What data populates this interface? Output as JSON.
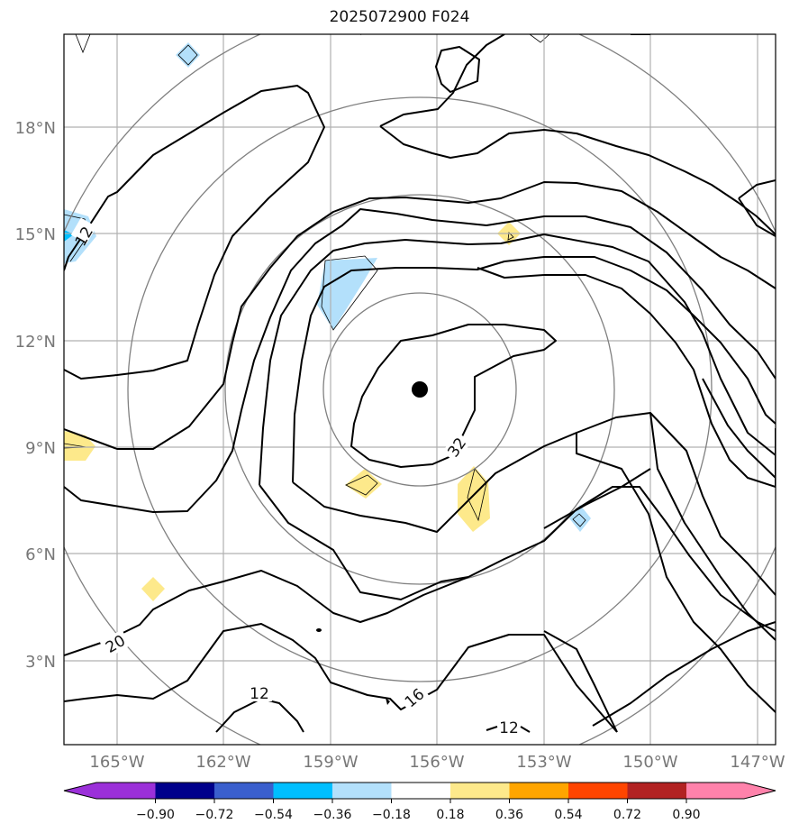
{
  "title": "2025072900 F024",
  "map": {
    "lat_ticks": [
      "18°N",
      "15°N",
      "12°N",
      "9°N",
      "6°N",
      "3°N"
    ],
    "lon_ticks": [
      "165°W",
      "162°W",
      "159°W",
      "156°W",
      "153°W",
      "150°W",
      "147°W"
    ],
    "contour_labels": [
      "12",
      "20",
      "12",
      "16",
      "32",
      "12"
    ],
    "storm_center_marker": "filled-circle",
    "colors": {
      "contour": "#000000",
      "range_rings": "#808080",
      "gridlines": "#b0b0b0",
      "light_blue": "#b3e0fb",
      "cyan": "#00bfff",
      "yellow": "#fde98b"
    }
  },
  "colorbar": {
    "labels": [
      "−0.90",
      "−0.72",
      "−0.54",
      "−0.36",
      "−0.18",
      "0.18",
      "0.36",
      "0.54",
      "0.72",
      "0.90"
    ],
    "colors": [
      "#9b30d9",
      "#00008b",
      "#3a5fcd",
      "#00bfff",
      "#b3e0fb",
      "#ffffff",
      "#fde98b",
      "#ffa500",
      "#ff4500",
      "#b22222",
      "#ff82ab"
    ]
  }
}
